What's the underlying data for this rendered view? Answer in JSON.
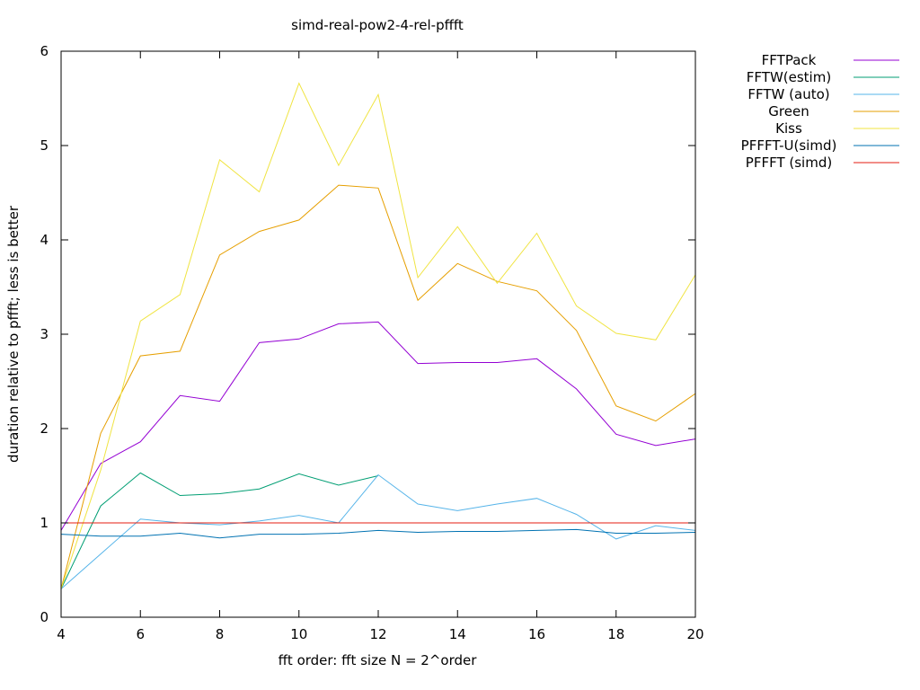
{
  "chart_data": {
    "type": "line",
    "title": "simd-real-pow2-4-rel-pffft",
    "xlabel": "fft order: fft size N = 2^order",
    "ylabel": "duration relative to pffft; less is better",
    "xlim": [
      4,
      20
    ],
    "ylim": [
      0,
      6
    ],
    "xticks": [
      4,
      6,
      8,
      10,
      12,
      14,
      16,
      18,
      20
    ],
    "yticks": [
      0,
      1,
      2,
      3,
      4,
      5,
      6
    ],
    "grid": false,
    "legend_position": "outside-top-right",
    "x": [
      4,
      5,
      6,
      7,
      8,
      9,
      10,
      11,
      12,
      13,
      14,
      15,
      16,
      17,
      18,
      19,
      20
    ],
    "series": [
      {
        "name": "FFTPack",
        "color": "#9400d3",
        "values": [
          0.92,
          1.63,
          1.86,
          2.35,
          2.29,
          2.91,
          2.95,
          3.11,
          3.13,
          2.69,
          2.7,
          2.7,
          2.74,
          2.42,
          1.94,
          1.82,
          1.89
        ]
      },
      {
        "name": "FFTW(estim)",
        "color": "#009e73",
        "values": [
          0.3,
          1.18,
          1.53,
          1.29,
          1.31,
          1.36,
          1.52,
          1.4,
          1.5,
          null,
          null,
          null,
          null,
          null,
          null,
          null,
          null
        ]
      },
      {
        "name": "FFTW (auto)",
        "color": "#56b4e9",
        "values": [
          0.3,
          0.67,
          1.04,
          1.0,
          0.98,
          1.02,
          1.08,
          1.0,
          1.51,
          1.2,
          1.13,
          1.2,
          1.26,
          1.09,
          0.83,
          0.97,
          0.92
        ]
      },
      {
        "name": "Green",
        "color": "#e69f00",
        "values": [
          0.3,
          1.95,
          2.77,
          2.82,
          3.84,
          4.09,
          4.21,
          4.58,
          4.55,
          3.36,
          3.75,
          3.56,
          3.46,
          3.04,
          2.24,
          2.08,
          2.37
        ]
      },
      {
        "name": "Kiss",
        "color": "#f0e442",
        "values": [
          0.3,
          1.56,
          3.14,
          3.42,
          4.85,
          4.51,
          5.66,
          4.79,
          5.54,
          3.6,
          4.14,
          3.54,
          4.07,
          3.3,
          3.01,
          2.94,
          3.63
        ]
      },
      {
        "name": "PFFFT-U(simd)",
        "color": "#0072b2",
        "values": [
          0.88,
          0.86,
          0.86,
          0.89,
          0.84,
          0.88,
          0.88,
          0.89,
          0.92,
          0.9,
          0.91,
          0.91,
          0.92,
          0.93,
          0.89,
          0.89,
          0.9
        ]
      },
      {
        "name": "PFFFT (simd)",
        "color": "#e51e10",
        "values": [
          1.0,
          1.0,
          1.0,
          1.0,
          1.0,
          1.0,
          1.0,
          1.0,
          1.0,
          1.0,
          1.0,
          1.0,
          1.0,
          1.0,
          1.0,
          1.0,
          1.0
        ]
      }
    ]
  }
}
